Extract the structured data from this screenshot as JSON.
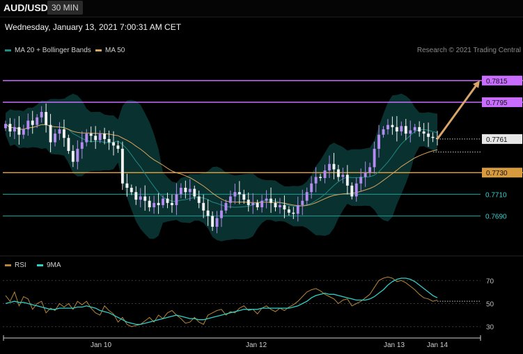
{
  "header": {
    "symbol": "AUD/USD",
    "timeframe": "30 MIN"
  },
  "datetime": "Wednesday, January 13, 2021 7:00:31 AM CET",
  "credit": "Research © 2021 Trading Central",
  "legend": [
    {
      "label": "MA 20 + Bollinger Bands",
      "color": "#1f8a86"
    },
    {
      "label": "MA 50",
      "color": "#d9a45c"
    }
  ],
  "rsi_legend": [
    {
      "label": "RSI",
      "color": "#b8863b"
    },
    {
      "label": "9MA",
      "color": "#2fd0c8"
    }
  ],
  "colors": {
    "resistance": "#c86dff",
    "pivot": "#d79a3c",
    "support": "#1f8a86",
    "candle_up": "#b48bf0",
    "candle_down": "#f2f2f2",
    "band_fill": "#0a3a37",
    "arrow": "#d9a56b",
    "rsi": "#b8863b",
    "rsi_ma": "#2fd0c8"
  },
  "chart_data": {
    "type": "candlestick",
    "ylim": [
      0.7655,
      0.7838
    ],
    "x_ticks": [
      "Jan 10",
      "Jan 12",
      "Jan 13",
      "Jan 14"
    ],
    "levels": [
      {
        "value": 0.7815,
        "label": "0.7815",
        "kind": "resistance"
      },
      {
        "value": 0.7795,
        "label": "0.7795",
        "kind": "resistance"
      },
      {
        "value": 0.7761,
        "label": "0.7761",
        "kind": "last"
      },
      {
        "value": 0.773,
        "label": "0.7730",
        "kind": "pivot"
      },
      {
        "value": 0.771,
        "label": "0.7710",
        "kind": "support"
      },
      {
        "value": 0.769,
        "label": "0.7690",
        "kind": "support"
      }
    ],
    "forecast_target": 0.7815,
    "close": [
      0.7775,
      0.7768,
      0.7772,
      0.7765,
      0.777,
      0.7778,
      0.7774,
      0.7781,
      0.7786,
      0.7774,
      0.7758,
      0.7766,
      0.777,
      0.7762,
      0.775,
      0.774,
      0.7752,
      0.7758,
      0.7766,
      0.7764,
      0.776,
      0.7766,
      0.7761,
      0.7758,
      0.7755,
      0.7752,
      0.772,
      0.7716,
      0.7712,
      0.7705,
      0.7708,
      0.7704,
      0.7698,
      0.7702,
      0.77,
      0.7706,
      0.7702,
      0.77,
      0.771,
      0.7716,
      0.7712,
      0.7715,
      0.7708,
      0.7702,
      0.7695,
      0.769,
      0.768,
      0.7688,
      0.7695,
      0.7702,
      0.7708,
      0.7712,
      0.771,
      0.7705,
      0.77,
      0.7702,
      0.7698,
      0.7704,
      0.7706,
      0.7702,
      0.7698,
      0.77,
      0.7696,
      0.7693,
      0.7692,
      0.77,
      0.7704,
      0.7712,
      0.772,
      0.7726,
      0.7725,
      0.7732,
      0.7738,
      0.7733,
      0.7726,
      0.7728,
      0.7718,
      0.7708,
      0.772,
      0.7726,
      0.773,
      0.7735,
      0.7752,
      0.7765,
      0.777,
      0.7774,
      0.7772,
      0.7768,
      0.7773,
      0.7766,
      0.7769,
      0.7772,
      0.7768,
      0.7766,
      0.7763,
      0.7762,
      0.7761
    ],
    "rsi": {
      "ylim": [
        25,
        78
      ],
      "ticks": [
        70,
        50,
        30
      ],
      "rsi": [
        57,
        52,
        60,
        48,
        56,
        54,
        45,
        50,
        52,
        42,
        46,
        44,
        50,
        47,
        50,
        45,
        52,
        49,
        52,
        46,
        42,
        40,
        48,
        44,
        41,
        34,
        38,
        32,
        30,
        31,
        32,
        35,
        38,
        34,
        40,
        37,
        42,
        44,
        40,
        37,
        33,
        34,
        38,
        34,
        32,
        40,
        42,
        44,
        45,
        40,
        43,
        42,
        46,
        48,
        44,
        45,
        41,
        46,
        48,
        45,
        43,
        46,
        44,
        47,
        49,
        52,
        56,
        60,
        62,
        63,
        61,
        58,
        56,
        54,
        50,
        53,
        54,
        48,
        50,
        52,
        55,
        58,
        64,
        70,
        72,
        73,
        72,
        69,
        70,
        68,
        65,
        62,
        58,
        55,
        54,
        52,
        53
      ],
      "ma": [
        50,
        51,
        52,
        51,
        51,
        50,
        49,
        48,
        47,
        46,
        45,
        45,
        46,
        46,
        46,
        46,
        47,
        47,
        48,
        47,
        46,
        44,
        43,
        42,
        40,
        38,
        36,
        34,
        33,
        32,
        32,
        33,
        34,
        35,
        36,
        37,
        38,
        39,
        40,
        39,
        38,
        37,
        37,
        36,
        36,
        37,
        38,
        39,
        40,
        41,
        42,
        43,
        44,
        45,
        45,
        45,
        45,
        46,
        46,
        46,
        46,
        46,
        46,
        46,
        47,
        48,
        50,
        52,
        55,
        57,
        58,
        59,
        58,
        58,
        57,
        56,
        55,
        54,
        53,
        53,
        53,
        54,
        56,
        59,
        62,
        66,
        69,
        71,
        72,
        72,
        71,
        69,
        66,
        63,
        60,
        57,
        55
      ]
    }
  }
}
